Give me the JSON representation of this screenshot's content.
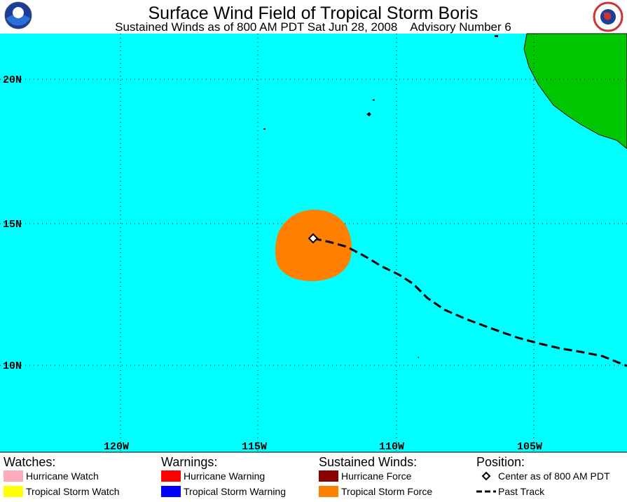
{
  "header": {
    "title": "Surface Wind Field of Tropical Storm Boris",
    "subtitle": "Sustained Winds as of 800 AM PDT Sat Jun 28, 2008    Advisory Number 6"
  },
  "map": {
    "lat_labels": [
      "20N",
      "15N",
      "10N"
    ],
    "lon_labels": [
      "120W",
      "115W",
      "110W",
      "105W"
    ]
  },
  "legend": {
    "watches": {
      "heading": "Watches:",
      "items": [
        "Hurricane Watch",
        "Tropical Storm Watch"
      ]
    },
    "warnings": {
      "heading": "Warnings:",
      "items": [
        "Hurricane Warning",
        "Tropical Storm Warning"
      ]
    },
    "winds": {
      "heading": "Sustained Winds:",
      "items": [
        "Hurricane Force",
        "Tropical Storm Force"
      ]
    },
    "position": {
      "heading": "Position:",
      "items": [
        "Center as of 800 AM PDT",
        "Past Track"
      ]
    }
  }
}
